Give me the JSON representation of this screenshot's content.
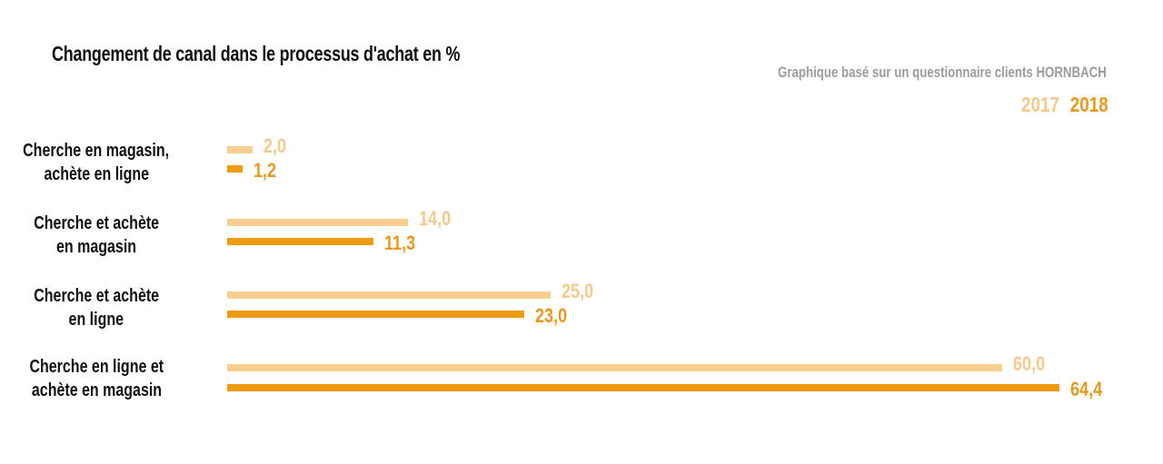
{
  "title": "Changement de canal dans le processus d'achat en %",
  "source": "Graphique basé sur un questionnaire clients HORNBACH",
  "legend": [
    {
      "label": "2017",
      "color": "#f8cf8e"
    },
    {
      "label": "2018",
      "color": "#ee9a0f"
    }
  ],
  "colors": {
    "s2017": "#f8cf8e",
    "s2018": "#ee9a0f",
    "label2017": "#f3c98c",
    "label2018": "#e8981c"
  },
  "categories_display": [
    {
      "line1": "Cherche en magasin,",
      "line2": "achète en ligne",
      "v2017": "2,0",
      "v2018": "1,2"
    },
    {
      "line1": "Cherche et achète",
      "line2": "en magasin",
      "v2017": "14,0",
      "v2018": "11,3"
    },
    {
      "line1": "Cherche et achète",
      "line2": "en ligne",
      "v2017": "25,0",
      "v2018": "23,0"
    },
    {
      "line1": "Cherche en ligne et",
      "line2": "achète en magasin",
      "v2017": "60,0",
      "v2018": "64,4"
    }
  ],
  "chart_data": {
    "type": "bar",
    "orientation": "horizontal",
    "title": "Changement de canal dans le processus d'achat en %",
    "subtitle": "Graphique basé sur un questionnaire clients HORNBACH",
    "categories": [
      "Cherche en magasin, achète en ligne",
      "Cherche et achète en magasin",
      "Cherche et achète en ligne",
      "Cherche en ligne et achète en magasin"
    ],
    "series": [
      {
        "name": "2017",
        "values": [
          2.0,
          14.0,
          25.0,
          60.0
        ],
        "color": "#f8cf8e"
      },
      {
        "name": "2018",
        "values": [
          1.2,
          11.3,
          23.0,
          64.4
        ],
        "color": "#ee9a0f"
      }
    ],
    "xlabel": "",
    "ylabel": "",
    "unit": "%",
    "xlim": [
      0,
      64.4
    ],
    "grid": false,
    "axes_visible": false,
    "data_labels": true,
    "legend_position": "top-right"
  }
}
